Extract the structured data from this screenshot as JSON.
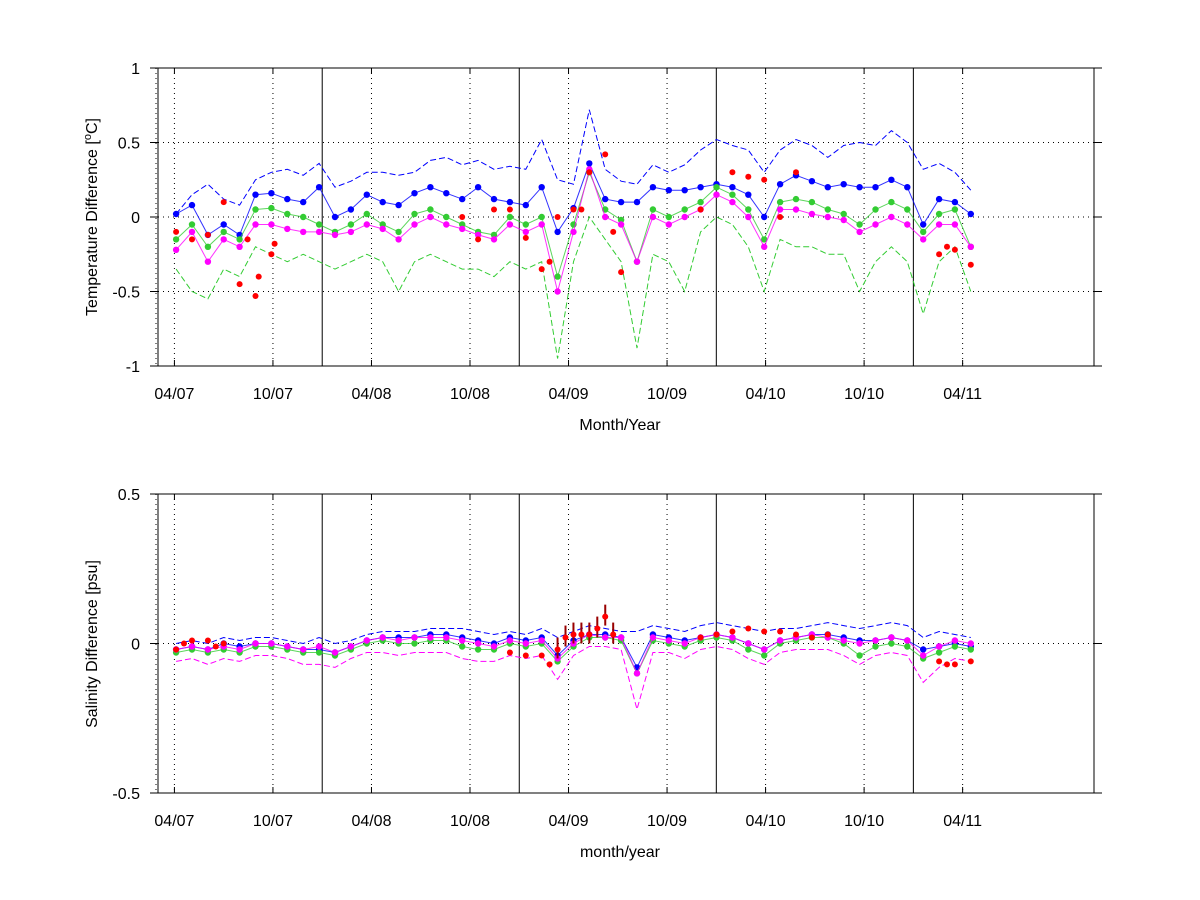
{
  "colors": {
    "background": "#ffffff",
    "axis": "#000000",
    "green": "#33cc33",
    "blue": "#0000ff",
    "magenta": "#ff00ff",
    "red": "#ff0000",
    "darkred": "#990000"
  },
  "chart_data": [
    {
      "type": "line",
      "title": "",
      "xlabel": "Month/Year",
      "ylabel": "Temperature Difference [",
      "ylabel_sup": "o",
      "ylabel_end": "C]",
      "ylim": [
        -1,
        1
      ],
      "yticks": [
        -1,
        -0.5,
        0,
        0.5,
        1
      ],
      "ytick_labels": [
        "-1",
        "-0.5",
        "0",
        "0.5",
        "1"
      ],
      "grid": "dotted",
      "x_tick_labels": [
        "04/07",
        "10/07",
        "04/08",
        "10/08",
        "04/09",
        "10/09",
        "04/10",
        "10/10",
        "04/11"
      ],
      "year_divider_months": [
        "01/08",
        "01/09",
        "01/10",
        "01/11"
      ],
      "series": [
        {
          "role": "blue_envelope",
          "color": "blue",
          "style": "dashed",
          "values": [
            0.02,
            0.15,
            0.22,
            0.12,
            0.08,
            0.25,
            0.3,
            0.32,
            0.28,
            0.36,
            0.2,
            0.24,
            0.3,
            0.3,
            0.28,
            0.3,
            0.38,
            0.4,
            0.35,
            0.38,
            0.32,
            0.34,
            0.32,
            0.52,
            0.25,
            0.22,
            0.72,
            0.32,
            0.24,
            0.22,
            0.35,
            0.3,
            0.35,
            0.45,
            0.52,
            0.48,
            0.45,
            0.3,
            0.45,
            0.52,
            0.48,
            0.4,
            0.48,
            0.5,
            0.48,
            0.58,
            0.5,
            0.32,
            0.36,
            0.3,
            0.18
          ]
        },
        {
          "role": "blue_mean",
          "color": "blue",
          "style": "markers",
          "values": [
            0.02,
            0.08,
            -0.12,
            -0.05,
            -0.12,
            0.15,
            0.16,
            0.12,
            0.1,
            0.2,
            0.0,
            0.05,
            0.15,
            0.1,
            0.08,
            0.16,
            0.2,
            0.16,
            0.12,
            0.2,
            0.12,
            0.1,
            0.08,
            0.2,
            -0.1,
            0.06,
            0.36,
            0.12,
            0.1,
            0.1,
            0.2,
            0.18,
            0.18,
            0.2,
            0.22,
            0.2,
            0.15,
            0.0,
            0.22,
            0.28,
            0.24,
            0.2,
            0.22,
            0.2,
            0.2,
            0.25,
            0.2,
            -0.05,
            0.12,
            0.1,
            0.02
          ]
        },
        {
          "role": "green_mean",
          "color": "green",
          "style": "markers",
          "values": [
            -0.15,
            -0.05,
            -0.2,
            -0.1,
            -0.15,
            0.05,
            0.06,
            0.02,
            0.0,
            -0.05,
            -0.1,
            -0.05,
            0.02,
            -0.05,
            -0.1,
            0.02,
            0.05,
            0.0,
            -0.05,
            -0.1,
            -0.12,
            0.0,
            -0.05,
            0.0,
            -0.4,
            -0.05,
            0.3,
            0.05,
            -0.02,
            -0.3,
            0.05,
            0.0,
            0.05,
            0.1,
            0.2,
            0.15,
            0.05,
            -0.15,
            0.1,
            0.12,
            0.1,
            0.05,
            0.02,
            -0.05,
            0.05,
            0.1,
            0.05,
            -0.1,
            0.02,
            0.05,
            -0.2
          ]
        },
        {
          "role": "magenta_mean",
          "color": "magenta",
          "style": "markers",
          "values": [
            -0.22,
            -0.1,
            -0.3,
            -0.15,
            -0.2,
            -0.05,
            -0.05,
            -0.08,
            -0.1,
            -0.1,
            -0.12,
            -0.1,
            -0.05,
            -0.08,
            -0.15,
            -0.05,
            0.0,
            -0.05,
            -0.08,
            -0.12,
            -0.15,
            -0.05,
            -0.1,
            -0.05,
            -0.5,
            -0.1,
            0.32,
            0.0,
            -0.05,
            -0.3,
            0.0,
            -0.05,
            0.0,
            0.05,
            0.15,
            0.1,
            0.0,
            -0.2,
            0.05,
            0.05,
            0.02,
            0.0,
            -0.02,
            -0.1,
            -0.05,
            0.0,
            -0.05,
            -0.15,
            -0.05,
            -0.05,
            -0.2
          ]
        },
        {
          "role": "lower_envelope",
          "color": "green",
          "style": "dashed",
          "values": [
            -0.35,
            -0.5,
            -0.55,
            -0.35,
            -0.4,
            -0.2,
            -0.25,
            -0.3,
            -0.25,
            -0.3,
            -0.35,
            -0.3,
            -0.25,
            -0.3,
            -0.5,
            -0.3,
            -0.25,
            -0.3,
            -0.35,
            -0.35,
            -0.4,
            -0.3,
            -0.35,
            -0.3,
            -0.95,
            -0.3,
            0.0,
            -0.15,
            -0.3,
            -0.88,
            -0.25,
            -0.3,
            -0.5,
            -0.1,
            0.0,
            -0.05,
            -0.2,
            -0.5,
            -0.15,
            -0.2,
            -0.2,
            -0.25,
            -0.25,
            -0.5,
            -0.3,
            -0.2,
            -0.3,
            -0.65,
            -0.3,
            -0.2,
            -0.5
          ]
        }
      ],
      "red_points": [
        [
          0,
          -0.1
        ],
        [
          1,
          -0.15
        ],
        [
          2,
          -0.12
        ],
        [
          3,
          0.1
        ],
        [
          4,
          -0.45
        ],
        [
          4.5,
          -0.15
        ],
        [
          5,
          -0.53
        ],
        [
          5.2,
          -0.4
        ],
        [
          6,
          -0.25
        ],
        [
          6.2,
          -0.18
        ],
        [
          18,
          0.0
        ],
        [
          19,
          -0.15
        ],
        [
          20,
          0.05
        ],
        [
          21,
          0.05
        ],
        [
          22,
          -0.14
        ],
        [
          23,
          -0.35
        ],
        [
          23.5,
          -0.3
        ],
        [
          24,
          0.0
        ],
        [
          25,
          0.05
        ],
        [
          25.5,
          0.05
        ],
        [
          26,
          0.3
        ],
        [
          27,
          0.42
        ],
        [
          27.5,
          -0.1
        ],
        [
          28,
          -0.37
        ],
        [
          33,
          0.05
        ],
        [
          35,
          0.3
        ],
        [
          36,
          0.27
        ],
        [
          37,
          0.25
        ],
        [
          38,
          0.0
        ],
        [
          39,
          0.3
        ],
        [
          48,
          -0.25
        ],
        [
          48.5,
          -0.2
        ],
        [
          49,
          -0.22
        ],
        [
          50,
          -0.32
        ]
      ]
    },
    {
      "type": "line",
      "title": "",
      "xlabel": "month/year",
      "ylabel": "Salinity Difference [psu]",
      "ylim": [
        -0.5,
        0.5
      ],
      "yticks": [
        -0.5,
        0,
        0.5
      ],
      "ytick_labels": [
        "-0.5",
        "0",
        "0.5"
      ],
      "grid": "dotted",
      "x_tick_labels": [
        "04/07",
        "10/07",
        "04/08",
        "10/08",
        "04/09",
        "10/09",
        "04/10",
        "10/10",
        "04/11"
      ],
      "year_divider_months": [
        "01/08",
        "01/09",
        "01/10",
        "01/11"
      ],
      "series": [
        {
          "role": "upper_envelope",
          "color": "blue",
          "style": "dashed",
          "values": [
            0.0,
            0.01,
            0.0,
            0.02,
            0.01,
            0.02,
            0.02,
            0.01,
            0.0,
            0.02,
            0.0,
            0.01,
            0.03,
            0.04,
            0.04,
            0.04,
            0.05,
            0.05,
            0.05,
            0.04,
            0.03,
            0.04,
            0.03,
            0.05,
            0.02,
            0.04,
            0.06,
            0.05,
            0.04,
            0.04,
            0.06,
            0.05,
            0.04,
            0.06,
            0.07,
            0.06,
            0.05,
            0.04,
            0.05,
            0.05,
            0.06,
            0.07,
            0.06,
            0.05,
            0.06,
            0.07,
            0.06,
            0.02,
            0.04,
            0.03,
            0.02
          ]
        },
        {
          "role": "blue_mean",
          "color": "blue",
          "style": "markers",
          "values": [
            -0.02,
            -0.01,
            -0.02,
            0.0,
            -0.01,
            0.0,
            0.0,
            -0.01,
            -0.02,
            -0.02,
            -0.03,
            -0.01,
            0.01,
            0.02,
            0.02,
            0.02,
            0.03,
            0.03,
            0.02,
            0.01,
            0.0,
            0.02,
            0.01,
            0.02,
            -0.04,
            0.01,
            0.03,
            0.03,
            0.02,
            -0.08,
            0.03,
            0.02,
            0.01,
            0.02,
            0.03,
            0.02,
            0.0,
            -0.02,
            0.01,
            0.02,
            0.03,
            0.03,
            0.02,
            0.01,
            0.01,
            0.02,
            0.01,
            -0.02,
            -0.01,
            0.0,
            -0.01
          ]
        },
        {
          "role": "green_mean",
          "color": "green",
          "style": "markers",
          "values": [
            -0.03,
            -0.02,
            -0.03,
            -0.02,
            -0.03,
            -0.01,
            -0.01,
            -0.02,
            -0.03,
            -0.03,
            -0.04,
            -0.02,
            0.0,
            0.01,
            0.0,
            0.0,
            0.01,
            0.01,
            -0.01,
            -0.02,
            -0.02,
            0.0,
            -0.01,
            0.0,
            -0.06,
            -0.01,
            0.02,
            0.02,
            0.01,
            -0.1,
            0.01,
            0.0,
            -0.01,
            0.01,
            0.02,
            0.01,
            -0.02,
            -0.04,
            0.0,
            0.01,
            0.02,
            0.02,
            0.0,
            -0.04,
            -0.01,
            0.0,
            -0.01,
            -0.05,
            -0.03,
            -0.01,
            -0.02
          ]
        },
        {
          "role": "magenta_mean",
          "color": "magenta",
          "style": "markers",
          "values": [
            -0.02,
            -0.01,
            -0.02,
            -0.01,
            -0.02,
            0.0,
            0.0,
            -0.01,
            -0.02,
            -0.01,
            -0.03,
            -0.01,
            0.01,
            0.02,
            0.01,
            0.02,
            0.02,
            0.02,
            0.01,
            0.0,
            -0.01,
            0.01,
            0.0,
            0.01,
            -0.05,
            0.0,
            0.03,
            0.02,
            0.02,
            -0.1,
            0.02,
            0.01,
            0.0,
            0.02,
            0.03,
            0.02,
            0.0,
            -0.02,
            0.01,
            0.02,
            0.03,
            0.02,
            0.01,
            0.0,
            0.01,
            0.02,
            0.01,
            -0.04,
            -0.01,
            0.01,
            0.0
          ]
        },
        {
          "role": "lower_envelope",
          "color": "magenta",
          "style": "dashed",
          "values": [
            -0.06,
            -0.05,
            -0.07,
            -0.05,
            -0.06,
            -0.04,
            -0.04,
            -0.05,
            -0.07,
            -0.07,
            -0.08,
            -0.05,
            -0.03,
            -0.03,
            -0.04,
            -0.03,
            -0.03,
            -0.03,
            -0.05,
            -0.06,
            -0.06,
            -0.04,
            -0.05,
            -0.04,
            -0.12,
            -0.04,
            -0.01,
            -0.01,
            -0.02,
            -0.22,
            -0.03,
            -0.03,
            -0.05,
            -0.02,
            -0.01,
            -0.02,
            -0.05,
            -0.07,
            -0.03,
            -0.02,
            -0.02,
            -0.02,
            -0.04,
            -0.07,
            -0.04,
            -0.03,
            -0.04,
            -0.13,
            -0.08,
            -0.05,
            -0.06
          ]
        }
      ],
      "red_points": [
        [
          0,
          -0.02
        ],
        [
          0.5,
          0.0
        ],
        [
          1,
          0.01
        ],
        [
          2,
          0.01
        ],
        [
          2.5,
          -0.01
        ],
        [
          3,
          0.0
        ],
        [
          21,
          -0.03
        ],
        [
          22,
          -0.04
        ],
        [
          23,
          -0.04
        ],
        [
          23.5,
          -0.07
        ],
        [
          24,
          -0.02
        ],
        [
          24.5,
          0.02
        ],
        [
          25,
          0.03
        ],
        [
          25.5,
          0.03
        ],
        [
          26,
          0.03
        ],
        [
          26.5,
          0.05
        ],
        [
          27,
          0.09
        ],
        [
          27.5,
          0.03
        ],
        [
          33,
          0.02
        ],
        [
          34,
          0.03
        ],
        [
          35,
          0.04
        ],
        [
          36,
          0.05
        ],
        [
          37,
          0.04
        ],
        [
          38,
          0.04
        ],
        [
          39,
          0.03
        ],
        [
          40,
          0.02
        ],
        [
          41,
          0.03
        ],
        [
          48,
          -0.06
        ],
        [
          48.5,
          -0.07
        ],
        [
          49,
          -0.07
        ],
        [
          50,
          -0.06
        ]
      ]
    }
  ]
}
